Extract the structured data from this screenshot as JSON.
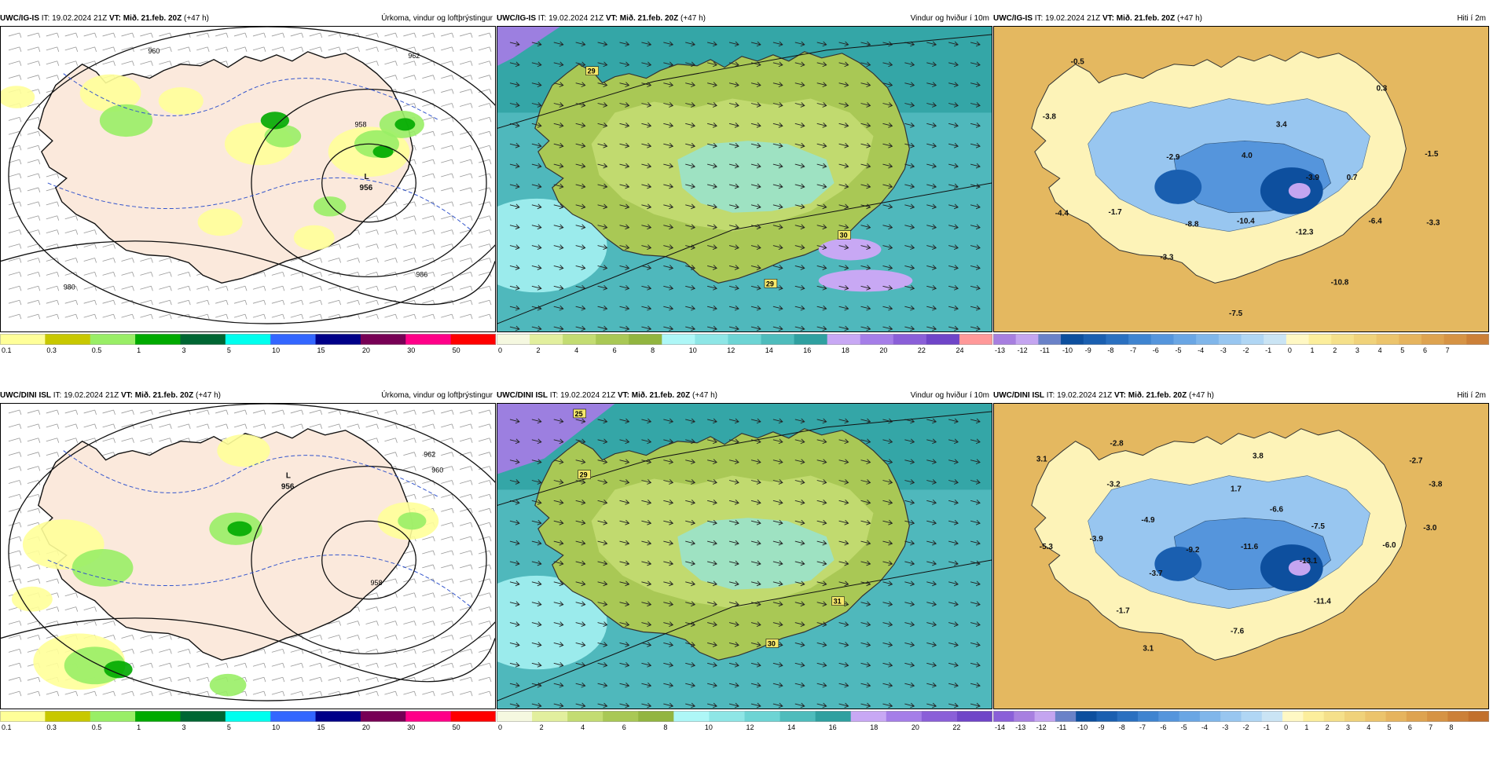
{
  "panels": [
    {
      "model": "UWC/IG-IS",
      "it": "IT: 19.02.2024 21Z",
      "vt": "VT: Mið. 21.feb. 20Z",
      "offset": "(+47 h)",
      "title": "Úrkoma, vindur og loftþrýstingur",
      "kind": "precip",
      "low_label": "L",
      "low_value": "956",
      "isobars": [
        "960",
        "962",
        "980",
        "958",
        "986"
      ],
      "scale_labels": [
        "0.1",
        "0.3",
        "0.5",
        "1",
        "3",
        "5",
        "10",
        "15",
        "20",
        "30",
        "50"
      ],
      "scale_colors": [
        "#ffff99",
        "#c8c800",
        "#99ee66",
        "#00aa00",
        "#006633",
        "#00ffee",
        "#3366ff",
        "#000088",
        "#770055",
        "#ff0088",
        "#ff0000"
      ]
    },
    {
      "model": "UWC/IG-IS",
      "it": "IT: 19.02.2024 21Z",
      "vt": "VT: Mið. 21.feb. 20Z",
      "offset": "(+47 h)",
      "title": "Vindur og hviður í 10m",
      "kind": "wind",
      "gusts": [
        "29",
        "30",
        "29"
      ],
      "scale_labels": [
        "0",
        "2",
        "4",
        "6",
        "8",
        "10",
        "12",
        "14",
        "16",
        "18",
        "20",
        "22",
        "24"
      ],
      "scale_colors": [
        "#f5f8e0",
        "#e2ef9e",
        "#c3dc72",
        "#a9c855",
        "#92b540",
        "#aef7f7",
        "#8ee6e6",
        "#6dd4d4",
        "#4ebcbc",
        "#2fa0a0",
        "#c8a8f4",
        "#a57ee8",
        "#8a5fd8",
        "#6f45c8",
        "#ff9999"
      ]
    },
    {
      "model": "UWC/IG-IS",
      "it": "IT: 19.02.2024 21Z",
      "vt": "VT: Mið. 21.feb. 20Z",
      "offset": "(+47 h)",
      "title": "Hiti í 2m",
      "kind": "temp",
      "temps": [
        "-0.5",
        "0.3",
        "-3.8",
        "3.4",
        "-1.5",
        "-2.9",
        "4.0",
        "-3.9",
        "0.7",
        "-4.4",
        "-1.7",
        "-8.8",
        "-10.4",
        "-12.3",
        "-6.4",
        "-3.3",
        "-3.3",
        "-10.8",
        "-7.5"
      ],
      "scale_labels": [
        "-13",
        "-12",
        "-11",
        "-10",
        "-9",
        "-8",
        "-7",
        "-6",
        "-5",
        "-4",
        "-3",
        "-2",
        "-1",
        "0",
        "1",
        "2",
        "3",
        "4",
        "5",
        "6",
        "7"
      ],
      "scale_colors": [
        "#a77fe0",
        "#c4a5f0",
        "#6a82c8",
        "#0d4f9e",
        "#1a5fb0",
        "#2a70c0",
        "#3f84d0",
        "#5595dc",
        "#6aa6e4",
        "#80b6ea",
        "#98c6f0",
        "#b0d6f4",
        "#cae4f4",
        "#fff8c4",
        "#fcee9c",
        "#f5e08a",
        "#f0d27a",
        "#ecc46c",
        "#e6b45e",
        "#dea350",
        "#d69344",
        "#cc8038"
      ]
    },
    {
      "model": "UWC/DINI ISL",
      "it": "IT: 19.02.2024 21Z",
      "vt": "VT: Mið. 21.feb. 20Z",
      "offset": "(+47 h)",
      "title": "Úrkoma, vindur og loftþrýstingur",
      "kind": "precip",
      "low_label": "L",
      "low_value": "956",
      "isobars": [
        "962",
        "958",
        "960"
      ],
      "scale_labels": [
        "0.1",
        "0.3",
        "0.5",
        "1",
        "3",
        "5",
        "10",
        "15",
        "20",
        "30",
        "50"
      ],
      "scale_colors": [
        "#ffff99",
        "#c8c800",
        "#99ee66",
        "#00aa00",
        "#006633",
        "#00ffee",
        "#3366ff",
        "#000088",
        "#770055",
        "#ff0088",
        "#ff0000"
      ]
    },
    {
      "model": "UWC/DINI ISL",
      "it": "IT: 19.02.2024 21Z",
      "vt": "VT: Mið. 21.feb. 20Z",
      "offset": "(+47 h)",
      "title": "Vindur og hviður í 10m",
      "kind": "wind",
      "gusts": [
        "25",
        "29",
        "31",
        "30"
      ],
      "scale_labels": [
        "0",
        "2",
        "4",
        "6",
        "8",
        "10",
        "12",
        "14",
        "16",
        "18",
        "20",
        "22"
      ],
      "scale_colors": [
        "#f5f8e0",
        "#e2ef9e",
        "#c3dc72",
        "#a9c855",
        "#92b540",
        "#aef7f7",
        "#8ee6e6",
        "#6dd4d4",
        "#4ebcbc",
        "#2fa0a0",
        "#c8a8f4",
        "#a57ee8",
        "#8a5fd8",
        "#6f45c8"
      ]
    },
    {
      "model": "UWC/DINI ISL",
      "it": "IT: 19.02.2024 21Z",
      "vt": "VT: Mið. 21.feb. 20Z",
      "offset": "(+47 h)",
      "title": "Hiti í 2m",
      "kind": "temp",
      "temps": [
        "-2.8",
        "3.1",
        "3.8",
        "-2.7",
        "-3.2",
        "1.7",
        "-3.8",
        "-4.9",
        "-6.6",
        "-7.5",
        "-3.0",
        "-5.3",
        "-3.9",
        "-9.2",
        "-11.6",
        "-13.1",
        "-6.0",
        "-3.7",
        "-11.4",
        "-1.7",
        "-7.6",
        "3.1"
      ],
      "scale_labels": [
        "-14",
        "-13",
        "-12",
        "-11",
        "-10",
        "-9",
        "-8",
        "-7",
        "-6",
        "-5",
        "-4",
        "-3",
        "-2",
        "-1",
        "0",
        "1",
        "2",
        "3",
        "4",
        "5",
        "6",
        "7",
        "8"
      ],
      "scale_colors": [
        "#8a5fd8",
        "#a77fe0",
        "#c4a5f0",
        "#6a82c8",
        "#0d4f9e",
        "#1a5fb0",
        "#2a70c0",
        "#3f84d0",
        "#5595dc",
        "#6aa6e4",
        "#80b6ea",
        "#98c6f0",
        "#b0d6f4",
        "#cae4f4",
        "#fff8c4",
        "#fcee9c",
        "#f5e08a",
        "#f0d27a",
        "#ecc46c",
        "#e6b45e",
        "#dea350",
        "#d69344",
        "#cc8038",
        "#c2702c"
      ]
    }
  ]
}
